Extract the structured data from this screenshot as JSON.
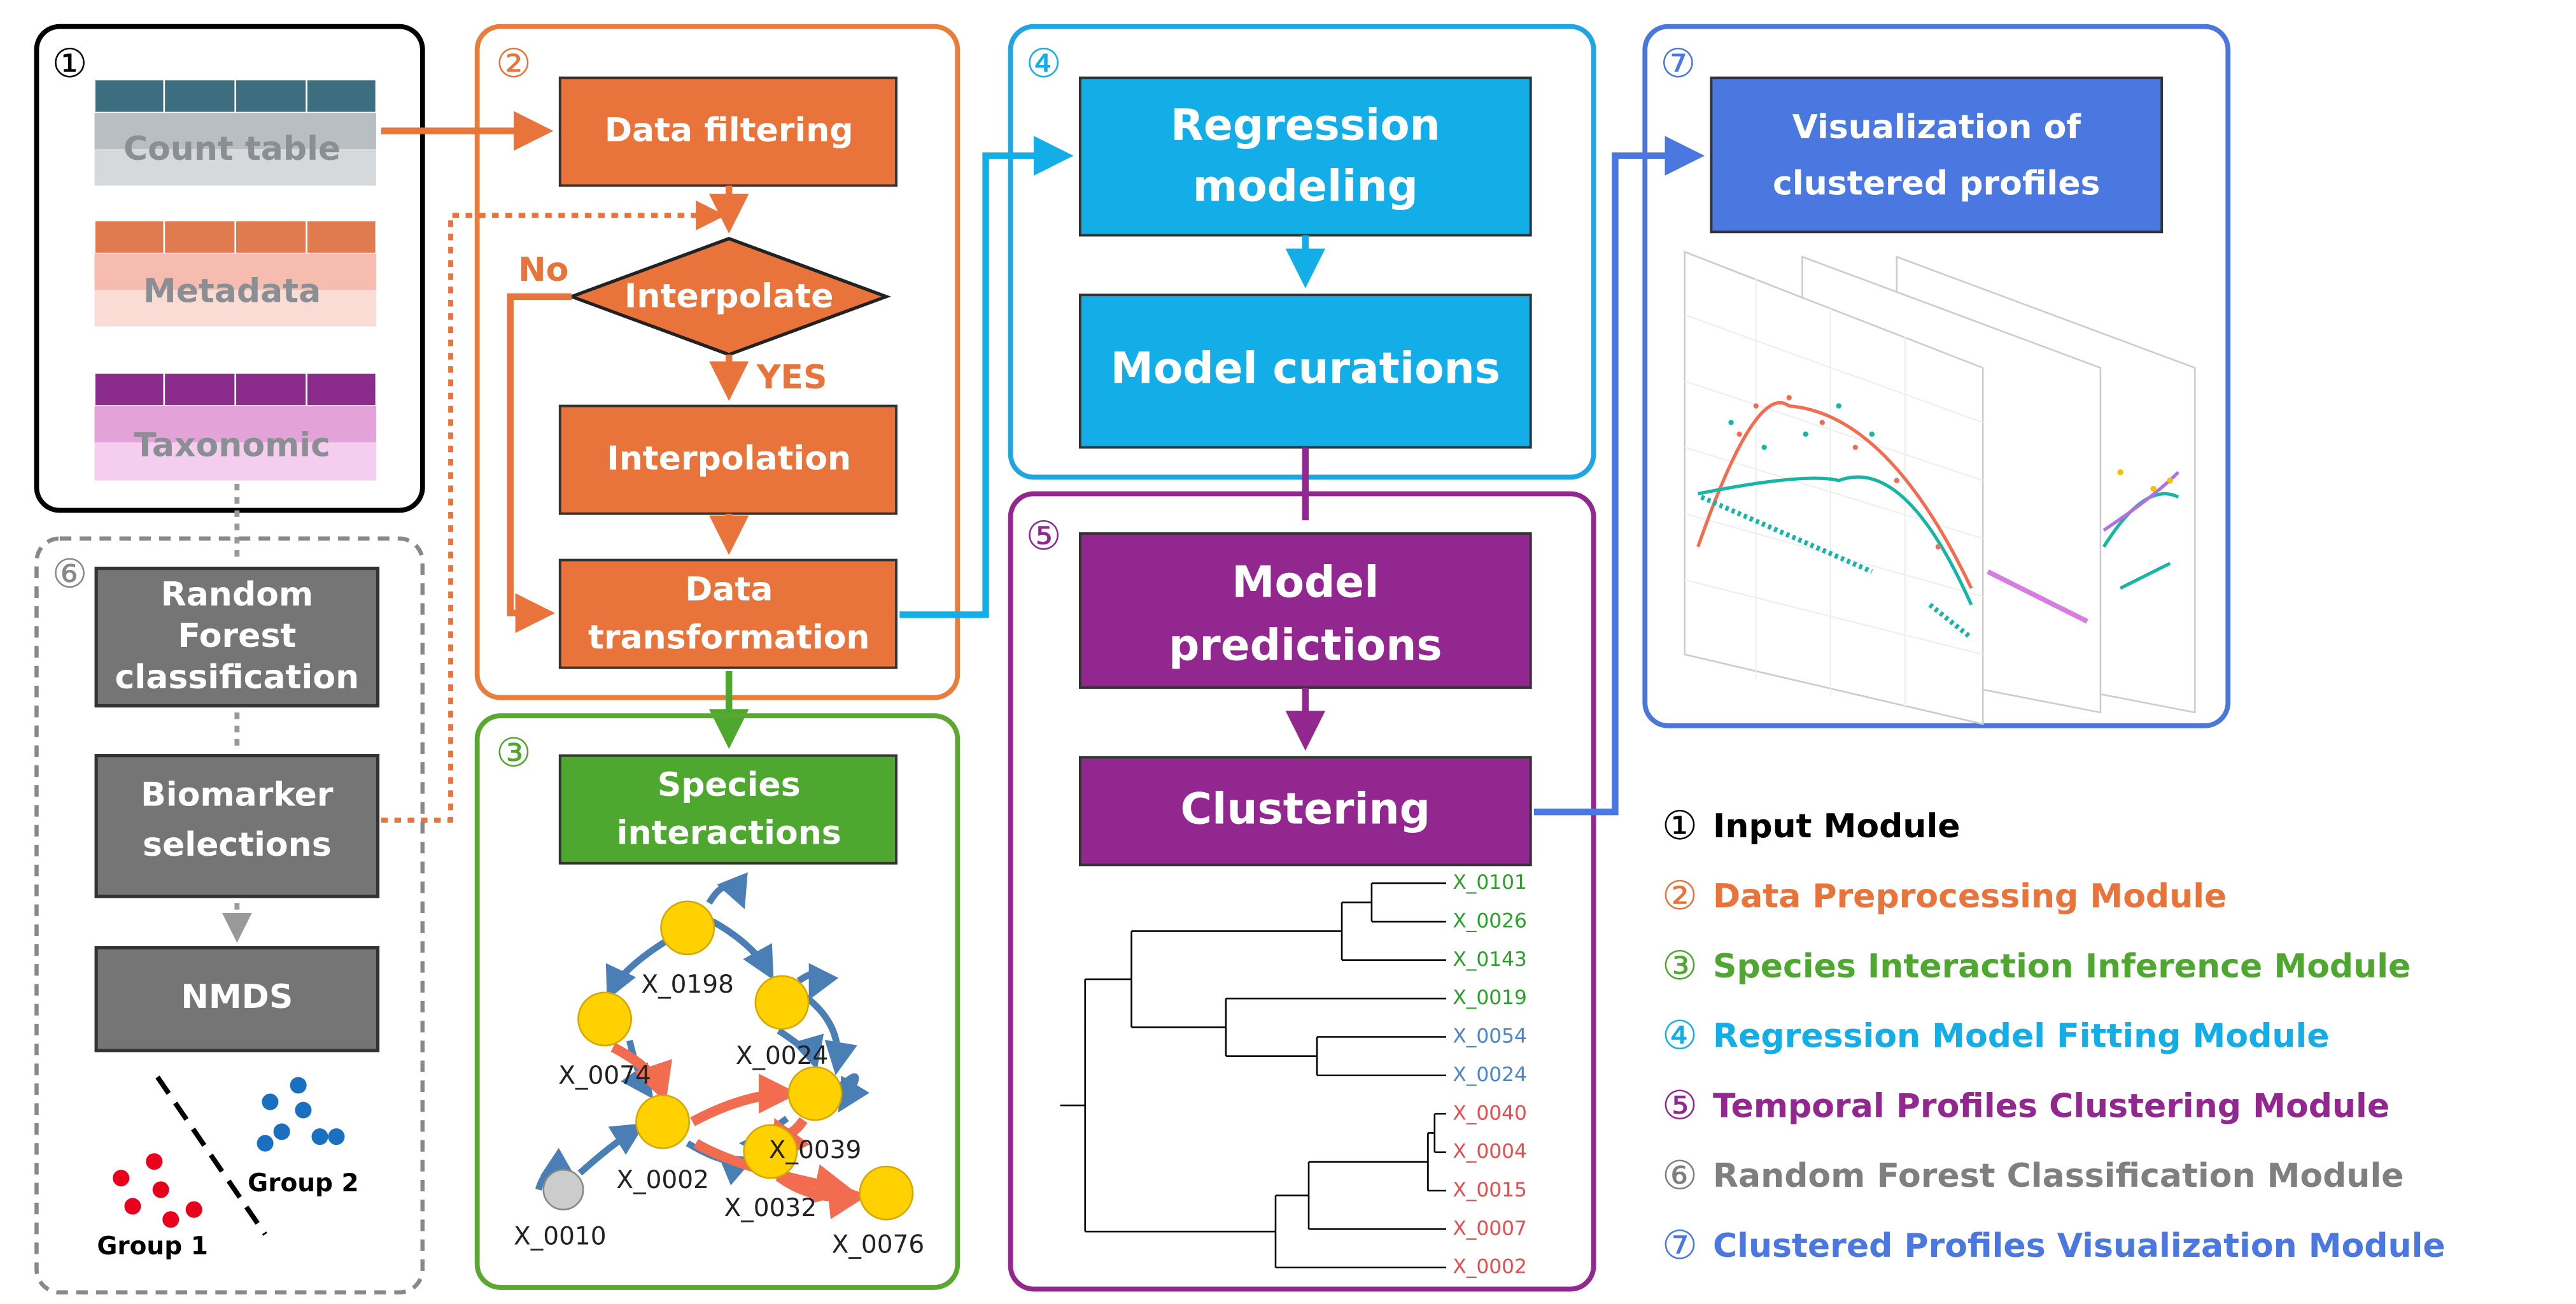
{
  "modules": [
    {
      "number": "①",
      "tables": [
        "Count table",
        "Metadata",
        "Taxonomic"
      ]
    },
    {
      "number": "②",
      "steps": [
        "Data filtering",
        "Interpolate",
        "Interpolation",
        [
          "Data",
          "transformation"
        ]
      ],
      "no": "No",
      "yes": "YES"
    },
    {
      "number": "③",
      "title": [
        "Species",
        "interactions"
      ],
      "nodes": [
        "X_0198",
        "X_0074",
        "X_0024",
        "X_0002",
        "X_0039",
        "X_0032",
        "X_0010",
        "X_0076"
      ]
    },
    {
      "number": "④",
      "steps": [
        [
          "Regression",
          "modeling"
        ],
        "Model curations"
      ]
    },
    {
      "number": "⑤",
      "steps": [
        [
          "Model",
          "predictions"
        ],
        "Clustering"
      ],
      "leaves": [
        "X_0101",
        "X_0026",
        "X_0143",
        "X_0019",
        "X_0054",
        "X_0024",
        "X_0040",
        "X_0004",
        "X_0015",
        "X_0007",
        "X_0002"
      ]
    },
    {
      "number": "⑥",
      "steps": [
        [
          "Random",
          "Forest",
          "classification"
        ],
        [
          "Biomarker",
          "selections"
        ],
        "NMDS"
      ],
      "groups": [
        "Group 1",
        "Group 2"
      ]
    },
    {
      "number": "⑦",
      "title": [
        "Visualization of",
        "clustered profiles"
      ]
    }
  ],
  "legend": [
    {
      "number": "①",
      "text": "Input Module"
    },
    {
      "number": "②",
      "text": "Data Preprocessing Module"
    },
    {
      "number": "③",
      "text": "Species Interaction Inference Module"
    },
    {
      "number": "④",
      "text": "Regression Model Fitting Module"
    },
    {
      "number": "⑤",
      "text": "Temporal Profiles Clustering Module"
    },
    {
      "number": "⑥",
      "text": "Random Forest Classification Module"
    },
    {
      "number": "⑦",
      "text": "Clustered Profiles Visualization Module"
    }
  ]
}
